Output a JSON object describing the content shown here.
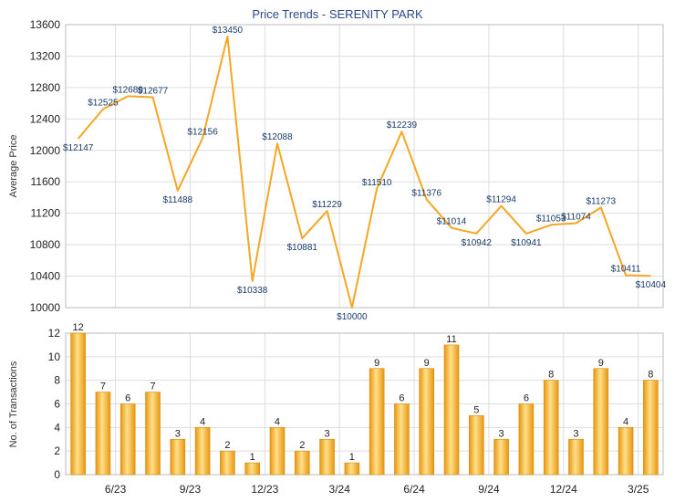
{
  "chart_data": [
    {
      "type": "line",
      "title": "Price Trends - SERENITY PARK",
      "ylabel": "Average Price",
      "ylim": [
        10000,
        13600
      ],
      "yticks": [
        10000,
        10400,
        10800,
        11200,
        11600,
        12000,
        12400,
        12800,
        13200,
        13600
      ],
      "values": [
        12147,
        12525,
        12689,
        12677,
        11488,
        12156,
        13450,
        10338,
        12088,
        10881,
        11229,
        10000,
        11510,
        12239,
        11376,
        11014,
        10942,
        11294,
        10941,
        11053,
        11074,
        11273,
        10411,
        10404
      ],
      "value_labels": [
        "$12147",
        "$12525",
        "$12689",
        "$12677",
        "$11488",
        "$12156",
        "$13450",
        "$10338",
        "$12088",
        "$10881",
        "$11229",
        "$10000",
        "$11510",
        "$12239",
        "$11376",
        "$11014",
        "$10942",
        "$11294",
        "$10941",
        "$11053",
        "$11074",
        "$11273",
        "$10411",
        "$10404"
      ],
      "color": "#f5a623",
      "grid": true
    },
    {
      "type": "bar",
      "ylabel": "No. of Transactions",
      "ylim": [
        0,
        12
      ],
      "yticks": [
        0,
        2,
        4,
        6,
        8,
        10,
        12
      ],
      "values": [
        12,
        7,
        6,
        7,
        3,
        4,
        2,
        1,
        4,
        2,
        3,
        1,
        9,
        6,
        9,
        11,
        5,
        3,
        6,
        8,
        3,
        9,
        4,
        8
      ],
      "xtick_labels": [
        "6/23",
        "9/23",
        "12/23",
        "3/24",
        "6/24",
        "9/24",
        "12/24",
        "3/25"
      ],
      "color": "#f5a623",
      "grid": true
    }
  ]
}
